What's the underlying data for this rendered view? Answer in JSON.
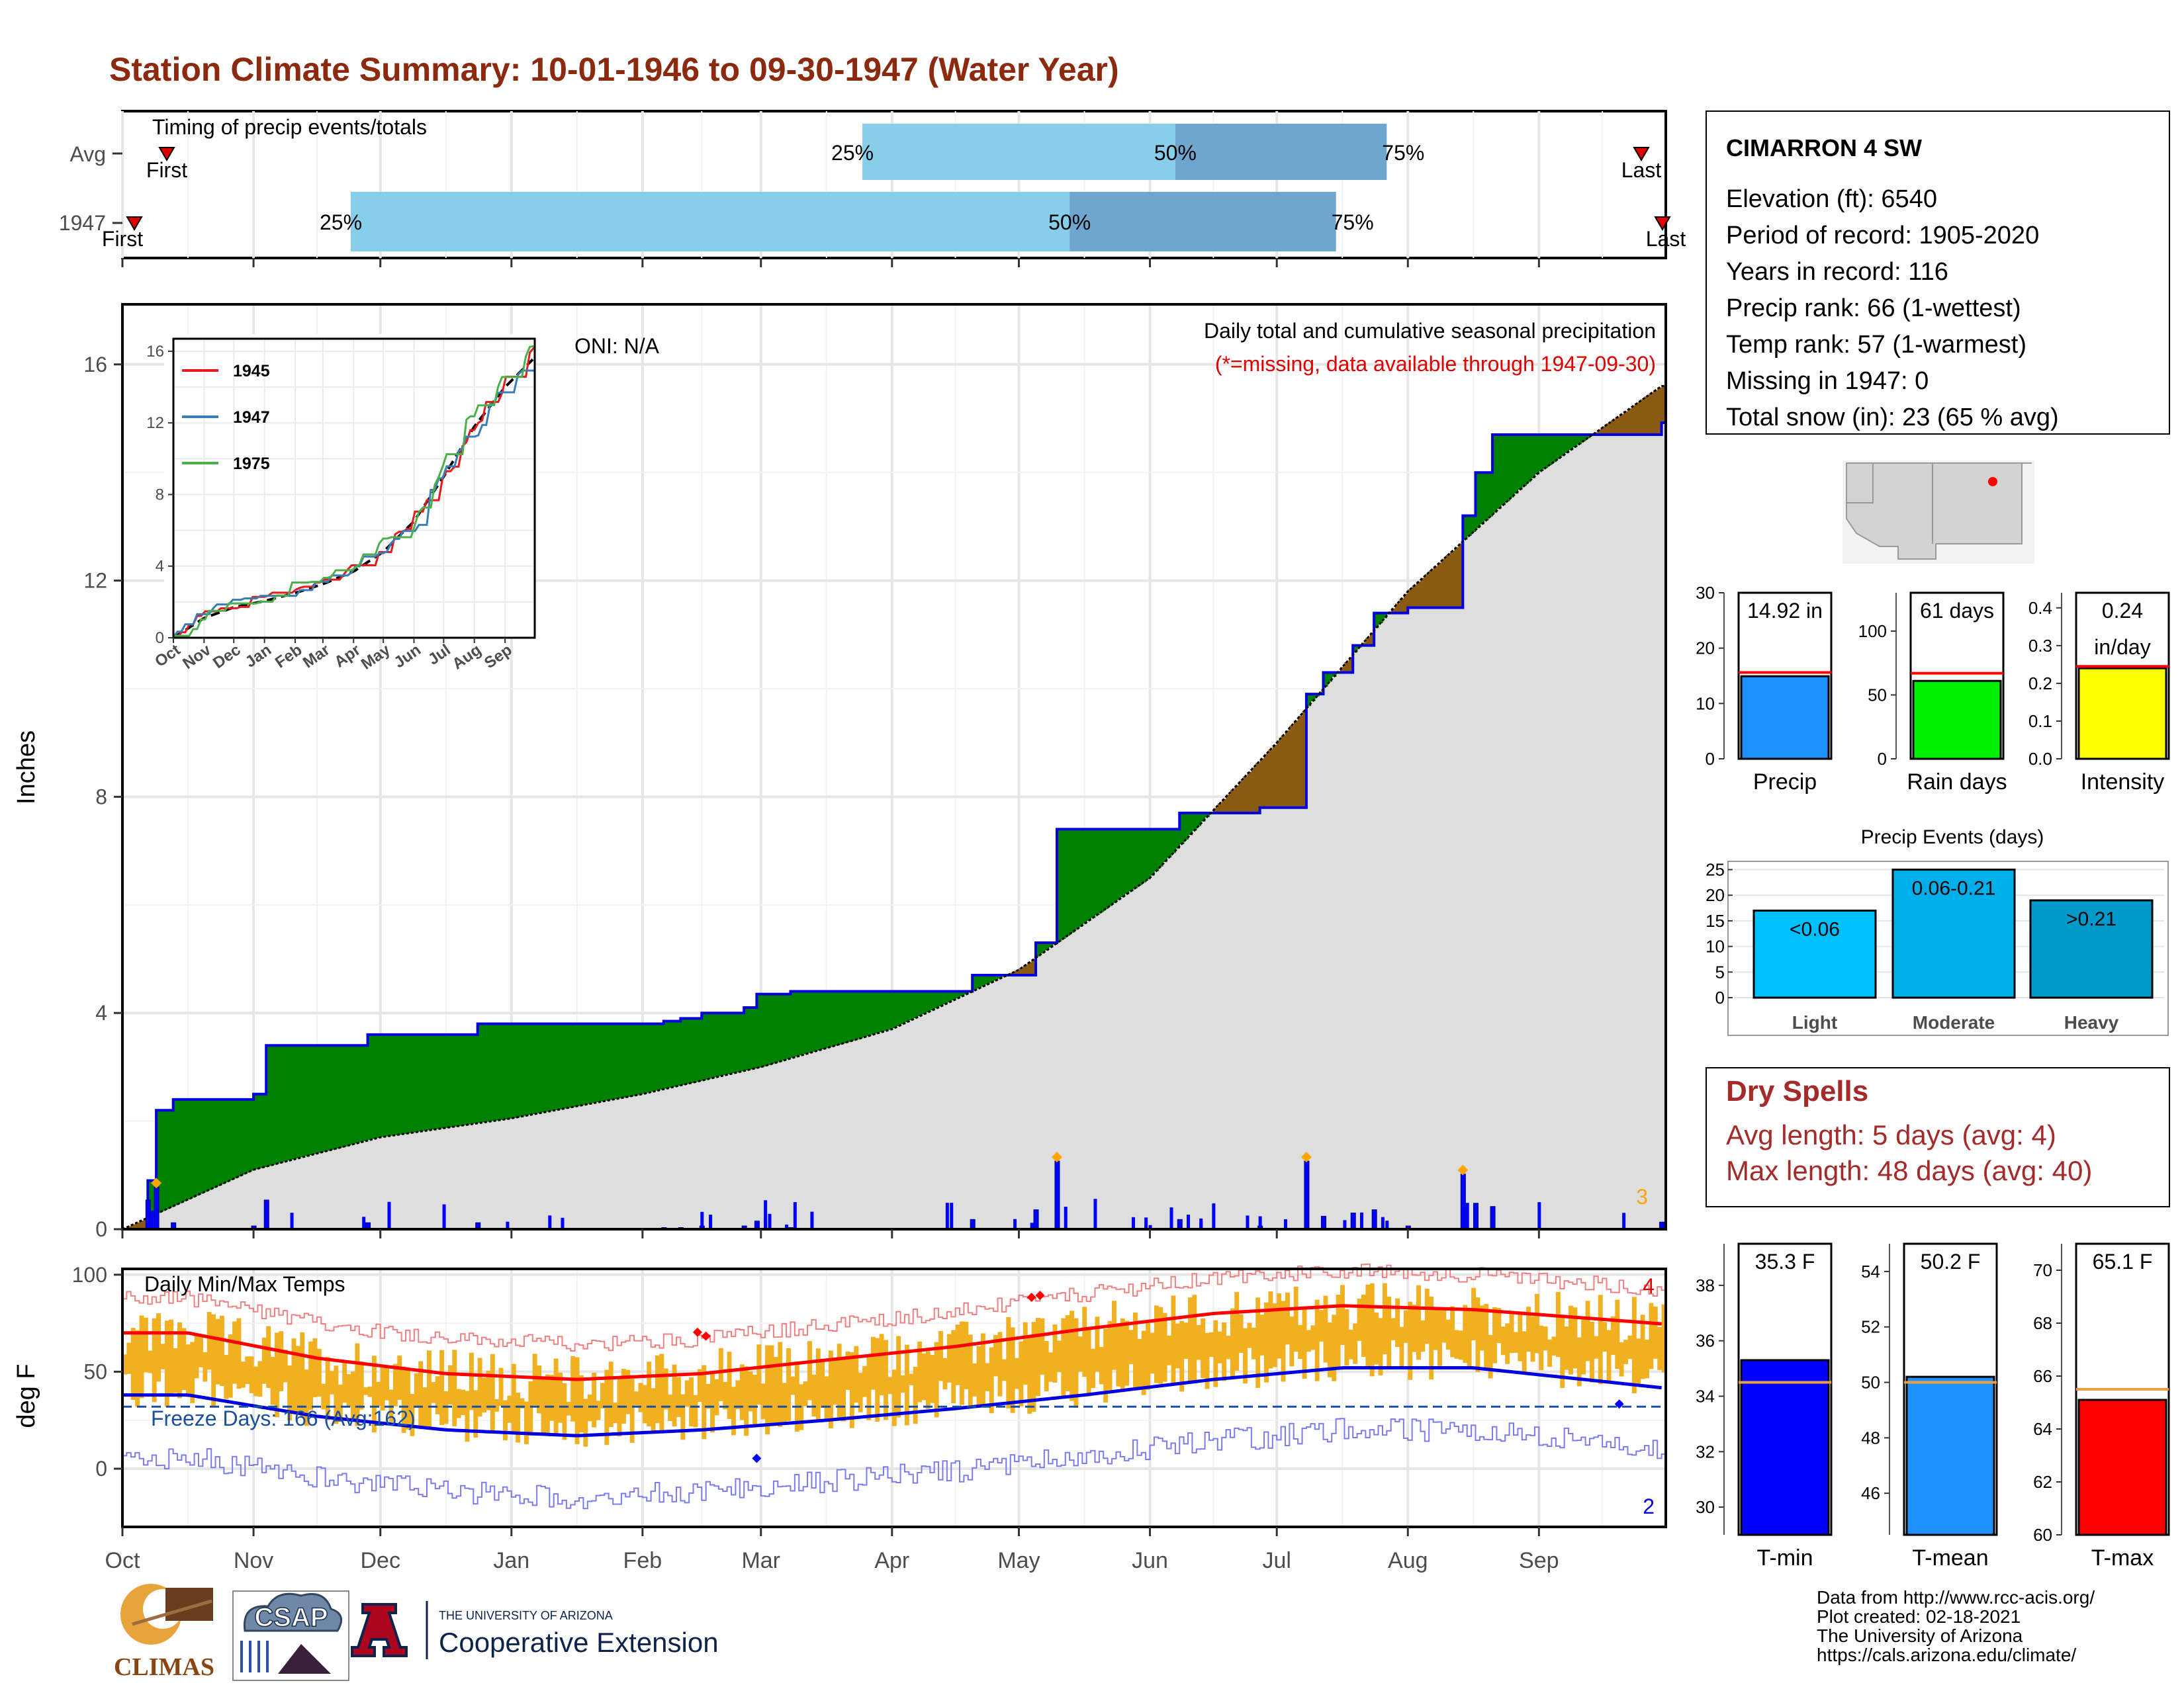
{
  "title": "Station Climate Summary: 10-01-1946 to 09-30-1947 (Water Year)",
  "timing": {
    "label": "Timing of precip events/totals",
    "rows": [
      {
        "name": "Avg",
        "first_label": "First",
        "last_label": "Last",
        "p25": "25%",
        "p50": "50%",
        "p75": "75%",
        "p25_date": "1947-03-25",
        "p50_date": "1947-06-07",
        "p75_date": "1947-07-27"
      },
      {
        "name": "1947",
        "first_label": "First",
        "last_label": "Last",
        "p25": "25%",
        "p50": "50%",
        "p75": "75%",
        "p25_date": "1946-11-24",
        "p50_date": "1947-05-13",
        "p75_date": "1947-07-15"
      }
    ]
  },
  "station": {
    "name": "CIMARRON 4 SW",
    "lines": [
      "Elevation (ft): 6540",
      "Period of record: 1905-2020",
      "Years in record: 116",
      "Precip rank: 66 (1-wettest)",
      "Temp rank: 57 (1-warmest)",
      "Missing in 1947: 0",
      "Total snow (in): 23 (65 % avg)"
    ]
  },
  "precip_panel": {
    "ylabel": "Inches",
    "oni": "ONI: N/A",
    "caption": "Daily total and cumulative seasonal precipitation",
    "missing_note": "(*=missing, data available through 1947-09-30)",
    "corner_count": "3",
    "yticks": [
      "0",
      "4",
      "8",
      "12",
      "16"
    ]
  },
  "inset": {
    "legend": [
      "1945",
      "1947",
      "1975"
    ],
    "legend_colors": [
      "#e41a1c",
      "#377eb8",
      "#4daf4a"
    ],
    "xticks": [
      "Oct",
      "Nov",
      "Dec",
      "Jan",
      "Feb",
      "Mar",
      "Apr",
      "May",
      "Jun",
      "Jul",
      "Aug",
      "Sep"
    ],
    "yticks": [
      "0",
      "4",
      "8",
      "12",
      "16"
    ]
  },
  "temp_panel": {
    "ylabel": "deg F",
    "label": "Daily Min/Max Temps",
    "freeze": "Freeze Days: 166 (Avg:162)",
    "count_max": "4",
    "count_min": "2",
    "yticks": [
      "0",
      "50",
      "100"
    ]
  },
  "months": [
    "Oct",
    "Nov",
    "Dec",
    "Jan",
    "Feb",
    "Mar",
    "Apr",
    "May",
    "Jun",
    "Jul",
    "Aug",
    "Sep"
  ],
  "summary_bars": [
    {
      "label": "Precip",
      "value_text": "14.92 in",
      "value": 14.92,
      "avg": 15.6,
      "ylim": [
        0,
        30
      ],
      "ticks": [
        "0",
        "10",
        "20",
        "30"
      ],
      "color": "#1e90ff"
    },
    {
      "label": "Rain days",
      "value_text": "61 days",
      "value": 61,
      "avg": 67,
      "ylim": [
        0,
        130
      ],
      "ticks": [
        "0",
        "50",
        "100"
      ],
      "color": "#00ee00"
    },
    {
      "label": "Intensity",
      "value_text": "0.24 in/day",
      "value": 0.24,
      "avg": 0.245,
      "ylim": [
        0,
        0.44
      ],
      "ticks": [
        "0.0",
        "0.1",
        "0.2",
        "0.3",
        "0.4"
      ],
      "color": "#ffff00"
    }
  ],
  "events": {
    "title": "Precip Events (days)",
    "ticks": [
      "0",
      "5",
      "10",
      "15",
      "20",
      "25"
    ],
    "bars": [
      {
        "label": "Light",
        "value_text": "<0.06",
        "value": 17
      },
      {
        "label": "Moderate",
        "value_text": "0.06-0.21",
        "value": 25
      },
      {
        "label": "Heavy",
        "value_text": ">0.21",
        "value": 19
      }
    ]
  },
  "dry_spells": {
    "title": "Dry Spells",
    "avg": "Avg length: 5 days (avg: 4)",
    "max": "Max length: 48 days (avg: 40)"
  },
  "temp_bars": [
    {
      "label": "T-min",
      "value_text": "35.3 F",
      "value": 35.3,
      "avg": 34.5,
      "ylim": [
        29,
        39.5
      ],
      "ticks": [
        "30",
        "32",
        "34",
        "36",
        "38"
      ],
      "color": "#0000ff"
    },
    {
      "label": "T-mean",
      "value_text": "50.2 F",
      "value": 50.2,
      "avg": 50.0,
      "ylim": [
        44.5,
        55
      ],
      "ticks": [
        "46",
        "48",
        "50",
        "52",
        "54"
      ],
      "color": "#1e90ff"
    },
    {
      "label": "T-max",
      "value_text": "65.1 F",
      "value": 65.1,
      "avg": 65.5,
      "ylim": [
        60,
        71
      ],
      "ticks": [
        "60",
        "62",
        "64",
        "66",
        "68",
        "70"
      ],
      "color": "#ff0000"
    }
  ],
  "footer": {
    "lines": [
      "Data from http://www.rcc-acis.org/",
      "Plot created: 02-18-2021",
      "The University of Arizona",
      "https://cals.arizona.edu/climate/"
    ],
    "climas": "CLIMAS",
    "csap": "CSAP",
    "ua_small": "THE UNIVERSITY OF ARIZONA",
    "ua_big": "Cooperative Extension"
  },
  "chart_data": [
    {
      "type": "area",
      "title": "Daily total and cumulative seasonal precipitation",
      "ylabel": "Inches",
      "ylim": [
        0,
        17
      ],
      "series": [
        {
          "name": "1947",
          "x": [
            "1946-10-01",
            "1946-10-07",
            "1946-10-09",
            "1946-10-13",
            "1946-10-26",
            "1946-11-01",
            "1946-11-04",
            "1946-11-28",
            "1946-12-24",
            "1947-02-06",
            "1947-02-10",
            "1947-02-15",
            "1947-02-25",
            "1947-02-28",
            "1947-03-08",
            "1947-04-20",
            "1947-05-05",
            "1947-05-10",
            "1947-06-08",
            "1947-06-27",
            "1947-07-08",
            "1947-07-12",
            "1947-07-19",
            "1947-07-24",
            "1947-08-01",
            "1947-08-14",
            "1947-08-17",
            "1947-08-21",
            "1947-08-28",
            "1947-09-30"
          ],
          "values": [
            0,
            0.9,
            2.2,
            2.4,
            2.4,
            2.5,
            3.4,
            3.6,
            3.8,
            3.85,
            3.9,
            4.0,
            4.1,
            4.35,
            4.4,
            4.7,
            5.3,
            7.4,
            7.7,
            7.8,
            9.9,
            10.3,
            10.8,
            11.4,
            11.5,
            13.2,
            14.0,
            14.7,
            14.7,
            14.92
          ]
        },
        {
          "name": "Avg",
          "x": [
            "1946-10-01",
            "1946-11-01",
            "1946-12-01",
            "1947-01-01",
            "1947-02-01",
            "1947-03-01",
            "1947-04-01",
            "1947-05-01",
            "1947-06-01",
            "1947-07-01",
            "1947-08-01",
            "1947-09-01",
            "1947-09-30"
          ],
          "values": [
            0,
            1.1,
            1.7,
            2.05,
            2.5,
            3.0,
            3.7,
            4.8,
            6.5,
            9.0,
            11.8,
            14.0,
            15.6
          ]
        }
      ]
    },
    {
      "type": "line",
      "title": "Daily Min/Max Temps",
      "ylabel": "deg F",
      "ylim": [
        -30,
        103
      ],
      "x": [
        "Oct",
        "Nov",
        "Dec",
        "Jan",
        "Feb",
        "Mar",
        "Apr",
        "May",
        "Jun",
        "Jul",
        "Aug",
        "Sep"
      ],
      "series": [
        {
          "name": "Avg max",
          "values": [
            70,
            57,
            49,
            46,
            49,
            56,
            63,
            72,
            80,
            84,
            82,
            77
          ]
        },
        {
          "name": "Avg min",
          "values": [
            38,
            27,
            20,
            17,
            20,
            25,
            31,
            38,
            46,
            52,
            52,
            45
          ]
        }
      ],
      "freeze_line": 32
    }
  ]
}
